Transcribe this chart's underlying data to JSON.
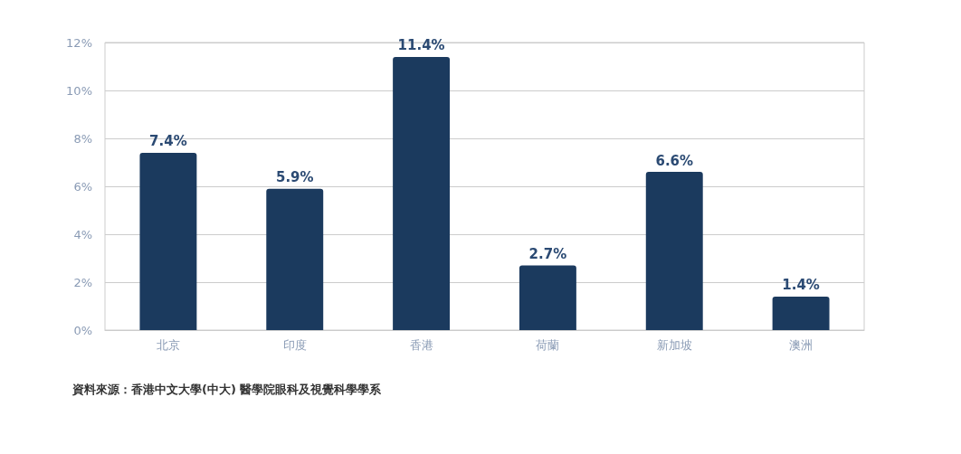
{
  "chart_data": {
    "type": "bar",
    "categories": [
      "北京",
      "印度",
      "香港",
      "荷蘭",
      "新加坡",
      "澳洲"
    ],
    "values": [
      7.4,
      5.9,
      11.4,
      2.7,
      6.6,
      1.4
    ],
    "color": "#1b3a5e",
    "value_labels": [
      "7.4%",
      "5.9%",
      "11.4%",
      "2.7%",
      "6.6%",
      "1.4%"
    ],
    "ylim": [
      0,
      12
    ],
    "yticks": [
      {
        "value": 0,
        "label": "0%"
      },
      {
        "value": 2,
        "label": "2%"
      },
      {
        "value": 4,
        "label": "4%"
      },
      {
        "value": 6,
        "label": "6%"
      },
      {
        "value": 8,
        "label": "8%"
      },
      {
        "value": 10,
        "label": "10%"
      },
      {
        "value": 12,
        "label": "12%"
      }
    ],
    "grid": "y",
    "annotations": [
      "資料來源：香港中文大學(中大) 醫學院眼科及視覺科學學系"
    ]
  }
}
